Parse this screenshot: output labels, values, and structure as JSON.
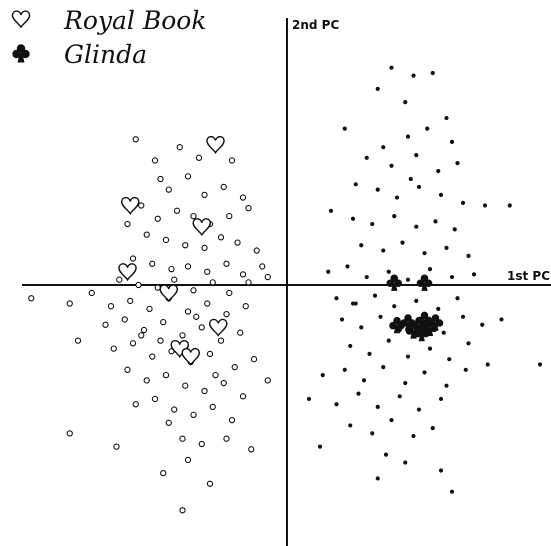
{
  "chart_data": {
    "type": "scatter",
    "title": "",
    "xlabel": "1st PC",
    "ylabel": "2nd PC",
    "xlim": [
      -1.0,
      0.95
    ],
    "ylim": [
      -0.95,
      1.0
    ],
    "grid": false,
    "legend": {
      "placement": "top-left",
      "entries": [
        {
          "label": "Royal Book",
          "marker": "open-heart-icon"
        },
        {
          "label": "Glinda",
          "marker": "filled-club-icon"
        }
      ]
    },
    "series": [
      {
        "marker": "small-open-circle",
        "color": "#111111",
        "points": [
          [
            -0.55,
            0.55
          ],
          [
            -0.48,
            0.47
          ],
          [
            -0.39,
            0.52
          ],
          [
            -0.32,
            0.48
          ],
          [
            -0.24,
            0.54
          ],
          [
            -0.2,
            0.47
          ],
          [
            -0.46,
            0.4
          ],
          [
            -0.43,
            0.36
          ],
          [
            -0.36,
            0.41
          ],
          [
            -0.3,
            0.34
          ],
          [
            -0.23,
            0.37
          ],
          [
            -0.16,
            0.33
          ],
          [
            -0.53,
            0.3
          ],
          [
            -0.47,
            0.25
          ],
          [
            -0.4,
            0.28
          ],
          [
            -0.34,
            0.26
          ],
          [
            -0.28,
            0.23
          ],
          [
            -0.21,
            0.26
          ],
          [
            -0.14,
            0.29
          ],
          [
            -0.58,
            0.23
          ],
          [
            -0.51,
            0.19
          ],
          [
            -0.44,
            0.17
          ],
          [
            -0.37,
            0.15
          ],
          [
            -0.3,
            0.14
          ],
          [
            -0.24,
            0.18
          ],
          [
            -0.18,
            0.16
          ],
          [
            -0.11,
            0.13
          ],
          [
            -0.56,
            0.1
          ],
          [
            -0.49,
            0.08
          ],
          [
            -0.42,
            0.06
          ],
          [
            -0.36,
            0.07
          ],
          [
            -0.29,
            0.05
          ],
          [
            -0.22,
            0.08
          ],
          [
            -0.16,
            0.04
          ],
          [
            -0.09,
            0.07
          ],
          [
            -0.61,
            0.02
          ],
          [
            -0.54,
            0.0
          ],
          [
            -0.47,
            -0.01
          ],
          [
            -0.41,
            0.02
          ],
          [
            -0.34,
            -0.02
          ],
          [
            -0.27,
            0.01
          ],
          [
            -0.21,
            -0.03
          ],
          [
            -0.14,
            0.01
          ],
          [
            -0.07,
            0.03
          ],
          [
            -0.93,
            -0.05
          ],
          [
            -0.79,
            -0.07
          ],
          [
            -0.71,
            -0.03
          ],
          [
            -0.64,
            -0.08
          ],
          [
            -0.57,
            -0.06
          ],
          [
            -0.5,
            -0.09
          ],
          [
            -0.43,
            -0.05
          ],
          [
            -0.36,
            -0.1
          ],
          [
            -0.29,
            -0.07
          ],
          [
            -0.22,
            -0.11
          ],
          [
            -0.15,
            -0.08
          ],
          [
            -0.66,
            -0.15
          ],
          [
            -0.59,
            -0.13
          ],
          [
            -0.52,
            -0.17
          ],
          [
            -0.45,
            -0.14
          ],
          [
            -0.38,
            -0.19
          ],
          [
            -0.31,
            -0.16
          ],
          [
            -0.24,
            -0.21
          ],
          [
            -0.17,
            -0.18
          ],
          [
            -0.76,
            -0.21
          ],
          [
            -0.63,
            -0.24
          ],
          [
            -0.56,
            -0.22
          ],
          [
            -0.49,
            -0.27
          ],
          [
            -0.42,
            -0.25
          ],
          [
            -0.35,
            -0.29
          ],
          [
            -0.28,
            -0.26
          ],
          [
            -0.19,
            -0.31
          ],
          [
            -0.58,
            -0.32
          ],
          [
            -0.51,
            -0.36
          ],
          [
            -0.44,
            -0.34
          ],
          [
            -0.37,
            -0.38
          ],
          [
            -0.3,
            -0.4
          ],
          [
            -0.23,
            -0.37
          ],
          [
            -0.16,
            -0.42
          ],
          [
            -0.07,
            -0.36
          ],
          [
            -0.55,
            -0.45
          ],
          [
            -0.48,
            -0.43
          ],
          [
            -0.41,
            -0.47
          ],
          [
            -0.34,
            -0.49
          ],
          [
            -0.27,
            -0.46
          ],
          [
            -0.2,
            -0.51
          ],
          [
            -0.79,
            -0.56
          ],
          [
            -0.62,
            -0.61
          ],
          [
            -0.43,
            -0.52
          ],
          [
            -0.38,
            -0.58
          ],
          [
            -0.31,
            -0.6
          ],
          [
            -0.22,
            -0.58
          ],
          [
            -0.13,
            -0.62
          ],
          [
            -0.45,
            -0.71
          ],
          [
            -0.36,
            -0.66
          ],
          [
            -0.28,
            -0.75
          ],
          [
            -0.38,
            -0.85
          ],
          [
            -0.53,
            -0.19
          ],
          [
            -0.46,
            -0.21
          ],
          [
            -0.33,
            -0.12
          ],
          [
            -0.26,
            -0.34
          ],
          [
            -0.12,
            -0.28
          ]
        ]
      },
      {
        "marker": "small-filled-dot",
        "color": "#111111",
        "points": [
          [
            0.38,
            0.82
          ],
          [
            0.46,
            0.79
          ],
          [
            0.53,
            0.8
          ],
          [
            0.33,
            0.74
          ],
          [
            0.43,
            0.69
          ],
          [
            0.58,
            0.63
          ],
          [
            0.21,
            0.59
          ],
          [
            0.35,
            0.52
          ],
          [
            0.44,
            0.56
          ],
          [
            0.51,
            0.59
          ],
          [
            0.6,
            0.54
          ],
          [
            0.29,
            0.48
          ],
          [
            0.38,
            0.45
          ],
          [
            0.47,
            0.49
          ],
          [
            0.55,
            0.43
          ],
          [
            0.62,
            0.46
          ],
          [
            0.25,
            0.38
          ],
          [
            0.33,
            0.36
          ],
          [
            0.4,
            0.33
          ],
          [
            0.48,
            0.37
          ],
          [
            0.56,
            0.34
          ],
          [
            0.64,
            0.31
          ],
          [
            0.72,
            0.3
          ],
          [
            0.16,
            0.28
          ],
          [
            0.24,
            0.25
          ],
          [
            0.31,
            0.23
          ],
          [
            0.39,
            0.26
          ],
          [
            0.47,
            0.22
          ],
          [
            0.54,
            0.24
          ],
          [
            0.61,
            0.21
          ],
          [
            0.27,
            0.15
          ],
          [
            0.35,
            0.13
          ],
          [
            0.42,
            0.16
          ],
          [
            0.5,
            0.12
          ],
          [
            0.58,
            0.14
          ],
          [
            0.66,
            0.11
          ],
          [
            0.81,
            0.3
          ],
          [
            0.15,
            0.05
          ],
          [
            0.22,
            0.07
          ],
          [
            0.29,
            0.03
          ],
          [
            0.37,
            0.05
          ],
          [
            0.44,
            0.02
          ],
          [
            0.52,
            0.06
          ],
          [
            0.6,
            0.03
          ],
          [
            0.68,
            0.04
          ],
          [
            0.18,
            -0.05
          ],
          [
            0.25,
            -0.07
          ],
          [
            0.32,
            -0.04
          ],
          [
            0.39,
            -0.08
          ],
          [
            0.47,
            -0.06
          ],
          [
            0.55,
            -0.09
          ],
          [
            0.62,
            -0.05
          ],
          [
            0.2,
            -0.13
          ],
          [
            0.27,
            -0.16
          ],
          [
            0.34,
            -0.12
          ],
          [
            0.41,
            -0.17
          ],
          [
            0.49,
            -0.14
          ],
          [
            0.57,
            -0.18
          ],
          [
            0.64,
            -0.12
          ],
          [
            0.71,
            -0.15
          ],
          [
            0.23,
            -0.23
          ],
          [
            0.3,
            -0.26
          ],
          [
            0.37,
            -0.21
          ],
          [
            0.44,
            -0.27
          ],
          [
            0.52,
            -0.24
          ],
          [
            0.59,
            -0.28
          ],
          [
            0.66,
            -0.22
          ],
          [
            0.13,
            -0.34
          ],
          [
            0.21,
            -0.32
          ],
          [
            0.28,
            -0.36
          ],
          [
            0.35,
            -0.31
          ],
          [
            0.43,
            -0.37
          ],
          [
            0.5,
            -0.33
          ],
          [
            0.58,
            -0.38
          ],
          [
            0.65,
            -0.32
          ],
          [
            0.08,
            -0.43
          ],
          [
            0.18,
            -0.45
          ],
          [
            0.26,
            -0.41
          ],
          [
            0.33,
            -0.46
          ],
          [
            0.41,
            -0.42
          ],
          [
            0.48,
            -0.47
          ],
          [
            0.56,
            -0.43
          ],
          [
            0.23,
            -0.53
          ],
          [
            0.31,
            -0.56
          ],
          [
            0.38,
            -0.51
          ],
          [
            0.46,
            -0.57
          ],
          [
            0.53,
            -0.54
          ],
          [
            0.12,
            -0.61
          ],
          [
            0.36,
            -0.64
          ],
          [
            0.43,
            -0.67
          ],
          [
            0.33,
            -0.73
          ],
          [
            0.56,
            -0.7
          ],
          [
            0.6,
            -0.78
          ],
          [
            0.78,
            -0.13
          ],
          [
            0.73,
            -0.3
          ],
          [
            0.92,
            -0.3
          ],
          [
            0.24,
            -0.07
          ],
          [
            0.45,
            0.4
          ]
        ]
      },
      {
        "name": "Royal Book",
        "marker": "open-heart",
        "color": "#111111",
        "points": [
          [
            -0.26,
            0.53
          ],
          [
            -0.57,
            0.3
          ],
          [
            -0.31,
            0.22
          ],
          [
            -0.58,
            0.05
          ],
          [
            -0.43,
            -0.03
          ],
          [
            -0.25,
            -0.16
          ],
          [
            -0.39,
            -0.24
          ],
          [
            -0.35,
            -0.27
          ]
        ]
      },
      {
        "name": "Glinda",
        "marker": "filled-club",
        "color": "#111111",
        "points": [
          [
            0.39,
            0.01
          ],
          [
            0.5,
            0.01
          ],
          [
            0.4,
            -0.15
          ],
          [
            0.44,
            -0.14
          ],
          [
            0.46,
            -0.17
          ],
          [
            0.48,
            -0.15
          ],
          [
            0.5,
            -0.13
          ],
          [
            0.52,
            -0.16
          ],
          [
            0.54,
            -0.14
          ],
          [
            0.49,
            -0.18
          ]
        ]
      }
    ]
  }
}
